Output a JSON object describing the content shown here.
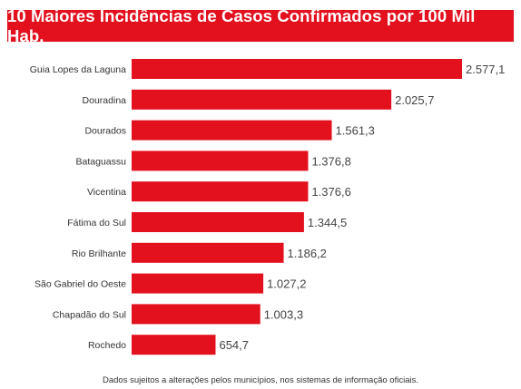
{
  "title": "10 Maiores Incidências de Casos Confirmados por 100 Mil Hab.",
  "footer": "Dados sujeitos a alterações pelos municípios, nos sistemas de informação oficiais.",
  "colors": {
    "bar": "#e3101e",
    "title_bg": "#e3101e",
    "title_text": "#ffffff"
  },
  "chart_data": {
    "type": "bar",
    "orientation": "horizontal",
    "title": "10 Maiores Incidências de Casos Confirmados por 100 Mil Hab.",
    "categories": [
      "Guia Lopes da Laguna",
      "Douradina",
      "Dourados",
      "Bataguassu",
      "Vicentina",
      "Fátima do Sul",
      "Rio Brilhante",
      "São Gabriel do Oeste",
      "Chapadão do Sul",
      "Rochedo"
    ],
    "values": [
      2577.1,
      2025.7,
      1561.3,
      1376.8,
      1376.6,
      1344.5,
      1186.2,
      1027.2,
      1003.3,
      654.7
    ],
    "value_labels": [
      "2.577,1",
      "2.025,7",
      "1.561,3",
      "1.376,8",
      "1.376,6",
      "1.344,5",
      "1.186,2",
      "1.027,2",
      "1.003,3",
      "654,7"
    ],
    "xlim": [
      0,
      2577.1
    ],
    "grid": false,
    "legend": "none"
  }
}
